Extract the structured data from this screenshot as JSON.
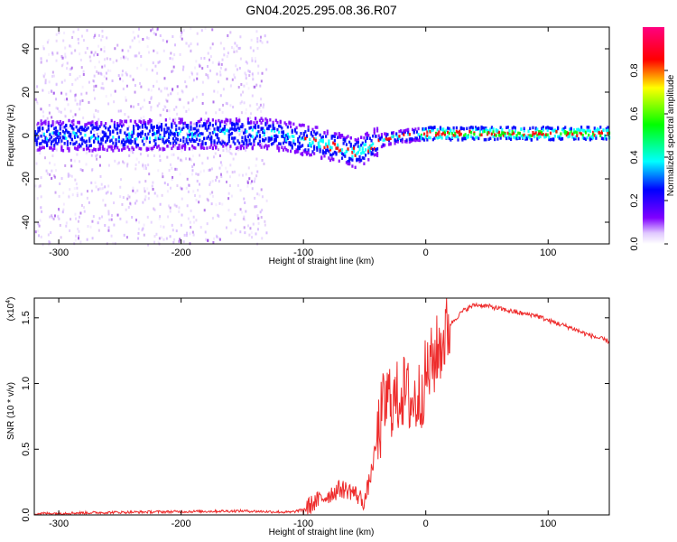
{
  "title": "GN04.2025.295.08.36.R07",
  "colors": {
    "snr_line": "#ee2b2b",
    "axis": "#000000",
    "background": "#ffffff"
  },
  "chart_data": [
    {
      "type": "heatmap",
      "xlabel": "Height of straight line (km)",
      "ylabel": "Frequency (Hz)",
      "xlim": [
        -320,
        150
      ],
      "ylim": [
        -50,
        50
      ],
      "xticks": [
        -300,
        -200,
        -100,
        0,
        100
      ],
      "xtick_labels": [
        "-300",
        "-200",
        "-100",
        "0",
        "100"
      ],
      "yticks": [
        -40,
        -20,
        0,
        20,
        40
      ],
      "ytick_labels": [
        "-40",
        "-20",
        "0",
        "20",
        "40"
      ],
      "colorbar": {
        "label": "Normalized spectral amplitude",
        "range": [
          0,
          1
        ],
        "ticks": [
          0.0,
          0.2,
          0.4,
          0.6,
          0.8
        ],
        "tick_labels": [
          "0.0",
          "0.2",
          "0.4",
          "0.6",
          "0.8"
        ],
        "colormap": [
          "#ffffff",
          "#8000ff",
          "#0000ff",
          "#00ffff",
          "#00ff00",
          "#ffff00",
          "#ff0000",
          "#ff0080"
        ]
      },
      "noise_region_x": [
        -320,
        -130
      ],
      "ridge": [
        {
          "x": -320,
          "f": 0
        },
        {
          "x": -250,
          "f": 0
        },
        {
          "x": -180,
          "f": 1
        },
        {
          "x": -130,
          "f": 1
        },
        {
          "x": -110,
          "f": -1
        },
        {
          "x": -90,
          "f": -3
        },
        {
          "x": -75,
          "f": -5
        },
        {
          "x": -60,
          "f": -8
        },
        {
          "x": -50,
          "f": -6
        },
        {
          "x": -40,
          "f": -3
        },
        {
          "x": -30,
          "f": -1
        },
        {
          "x": -15,
          "f": 0
        },
        {
          "x": 0,
          "f": 1
        },
        {
          "x": 150,
          "f": 1
        }
      ]
    },
    {
      "type": "line",
      "xlabel": "Height of straight line (km)",
      "ylabel": "SNR (10 * v/v)",
      "multiplier_label": "(x10",
      "multiplier_exponent": "4",
      "multiplier_suffix": ")",
      "xlim": [
        -320,
        150
      ],
      "ylim": [
        0,
        1.65
      ],
      "xticks": [
        -300,
        -200,
        -100,
        0,
        100
      ],
      "xtick_labels": [
        "-300",
        "-200",
        "-100",
        "0",
        "100"
      ],
      "yticks": [
        0,
        0.5,
        1.0,
        1.5
      ],
      "ytick_labels": [
        "0.0",
        "0.5",
        "1.0",
        "1.5"
      ],
      "series": [
        {
          "name": "SNR",
          "x": [
            -320,
            -250,
            -150,
            -110,
            -100,
            -90,
            -80,
            -70,
            -60,
            -50,
            -45,
            -40,
            -35,
            -30,
            -25,
            -20,
            -15,
            -10,
            -5,
            0,
            10,
            20,
            30,
            40,
            50,
            60,
            70,
            80,
            90,
            100,
            110,
            120,
            130,
            140,
            150
          ],
          "y": [
            0.01,
            0.02,
            0.03,
            0.02,
            0.04,
            0.1,
            0.15,
            0.2,
            0.18,
            0.1,
            0.3,
            0.55,
            0.8,
            0.9,
            0.85,
            0.95,
            0.9,
            0.85,
            0.9,
            1.05,
            1.25,
            1.45,
            1.55,
            1.6,
            1.59,
            1.57,
            1.55,
            1.53,
            1.52,
            1.48,
            1.45,
            1.42,
            1.38,
            1.35,
            1.32
          ]
        }
      ]
    }
  ]
}
